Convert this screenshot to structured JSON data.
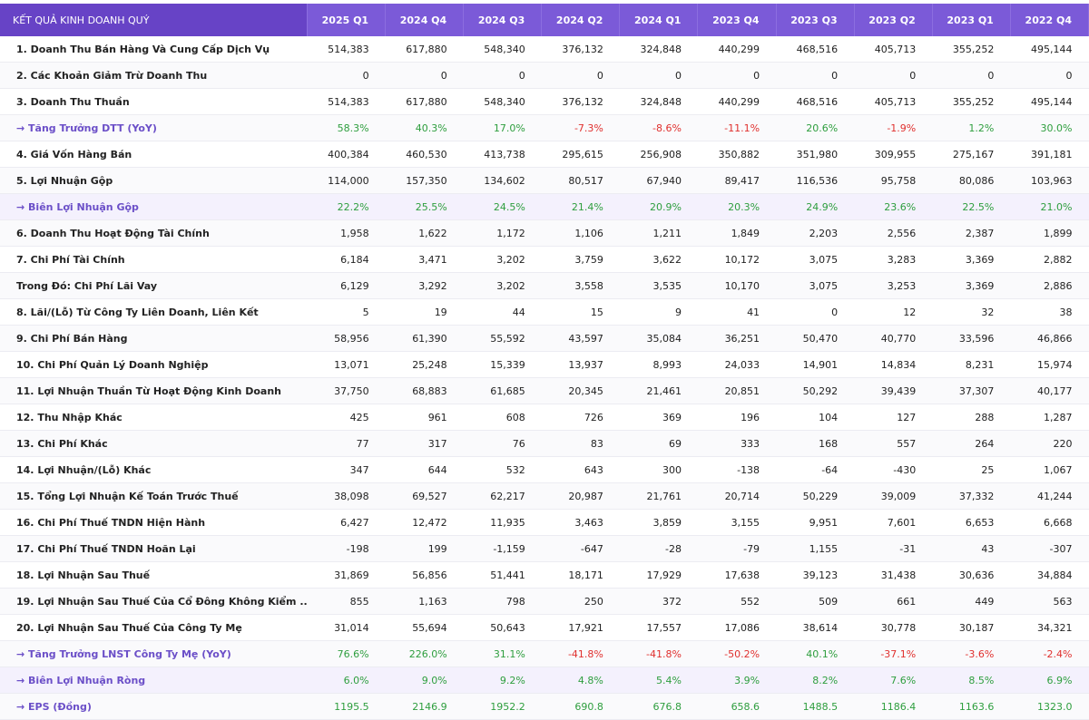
{
  "table": {
    "header": [
      "KẾT QUẢ KINH DOANH QUÝ",
      "2025 Q1",
      "2024 Q4",
      "2024 Q3",
      "2024 Q2",
      "2024 Q1",
      "2023 Q4",
      "2023 Q3",
      "2023 Q2",
      "2023 Q1",
      "2022 Q4"
    ],
    "rows": [
      [
        "1. Doanh Thu Bán Hàng Và Cung Cấp Dịch Vụ",
        "514,383",
        "617,880",
        "548,340",
        "376,132",
        "324,848",
        "440,299",
        "468,516",
        "405,713",
        "355,252",
        "495,144"
      ],
      [
        "2. Các Khoản Giảm Trừ Doanh Thu",
        "0",
        "0",
        "0",
        "0",
        "0",
        "0",
        "0",
        "0",
        "0",
        "0"
      ],
      [
        "3. Doanh Thu Thuần",
        "514,383",
        "617,880",
        "548,340",
        "376,132",
        "324,848",
        "440,299",
        "468,516",
        "405,713",
        "355,252",
        "495,144"
      ],
      [
        "→ Tăng Trưởng DTT (YoY)",
        "58.3%",
        "40.3%",
        "17.0%",
        "-7.3%",
        "-8.6%",
        "-11.1%",
        "20.6%",
        "-1.9%",
        "1.2%",
        "30.0%"
      ],
      [
        "4. Giá Vốn Hàng Bán",
        "400,384",
        "460,530",
        "413,738",
        "295,615",
        "256,908",
        "350,882",
        "351,980",
        "309,955",
        "275,167",
        "391,181"
      ],
      [
        "5. Lợi Nhuận Gộp",
        "114,000",
        "157,350",
        "134,602",
        "80,517",
        "67,940",
        "89,417",
        "116,536",
        "95,758",
        "80,086",
        "103,963"
      ],
      [
        "→ Biên Lợi Nhuận Gộp",
        "22.2%",
        "25.5%",
        "24.5%",
        "21.4%",
        "20.9%",
        "20.3%",
        "24.9%",
        "23.6%",
        "22.5%",
        "21.0%"
      ],
      [
        "6. Doanh Thu Hoạt Động Tài Chính",
        "1,958",
        "1,622",
        "1,172",
        "1,106",
        "1,211",
        "1,849",
        "2,203",
        "2,556",
        "2,387",
        "1,899"
      ],
      [
        "7. Chi Phí Tài Chính",
        "6,184",
        "3,471",
        "3,202",
        "3,759",
        "3,622",
        "10,172",
        "3,075",
        "3,283",
        "3,369",
        "2,882"
      ],
      [
        "Trong Đó: Chi Phí Lãi Vay",
        "6,129",
        "3,292",
        "3,202",
        "3,558",
        "3,535",
        "10,170",
        "3,075",
        "3,253",
        "3,369",
        "2,886"
      ],
      [
        "8. Lãi/(Lỗ) Từ Công Ty Liên Doanh, Liên Kết",
        "5",
        "19",
        "44",
        "15",
        "9",
        "41",
        "0",
        "12",
        "32",
        "38"
      ],
      [
        "9. Chi Phí Bán Hàng",
        "58,956",
        "61,390",
        "55,592",
        "43,597",
        "35,084",
        "36,251",
        "50,470",
        "40,770",
        "33,596",
        "46,866"
      ],
      [
        "10. Chi Phí Quản Lý Doanh Nghiệp",
        "13,071",
        "25,248",
        "15,339",
        "13,937",
        "8,993",
        "24,033",
        "14,901",
        "14,834",
        "8,231",
        "15,974"
      ],
      [
        "11. Lợi Nhuận Thuần Từ Hoạt Động Kinh Doanh",
        "37,750",
        "68,883",
        "61,685",
        "20,345",
        "21,461",
        "20,851",
        "50,292",
        "39,439",
        "37,307",
        "40,177"
      ],
      [
        "12. Thu Nhập Khác",
        "425",
        "961",
        "608",
        "726",
        "369",
        "196",
        "104",
        "127",
        "288",
        "1,287"
      ],
      [
        "13. Chi Phí Khác",
        "77",
        "317",
        "76",
        "83",
        "69",
        "333",
        "168",
        "557",
        "264",
        "220"
      ],
      [
        "14. Lợi Nhuận/(Lỗ) Khác",
        "347",
        "644",
        "532",
        "643",
        "300",
        "-138",
        "-64",
        "-430",
        "25",
        "1,067"
      ],
      [
        "15. Tổng Lợi Nhuận Kế Toán Trước Thuế",
        "38,098",
        "69,527",
        "62,217",
        "20,987",
        "21,761",
        "20,714",
        "50,229",
        "39,009",
        "37,332",
        "41,244"
      ],
      [
        "16. Chi Phí Thuế TNDN Hiện Hành",
        "6,427",
        "12,472",
        "11,935",
        "3,463",
        "3,859",
        "3,155",
        "9,951",
        "7,601",
        "6,653",
        "6,668"
      ],
      [
        "17. Chi Phí Thuế TNDN Hoãn Lại",
        "-198",
        "199",
        "-1,159",
        "-647",
        "-28",
        "-79",
        "1,155",
        "-31",
        "43",
        "-307"
      ],
      [
        "18. Lợi Nhuận Sau Thuế",
        "31,869",
        "56,856",
        "51,441",
        "18,171",
        "17,929",
        "17,638",
        "39,123",
        "31,438",
        "30,636",
        "34,884"
      ],
      [
        "19. Lợi Nhuận Sau Thuế Của Cổ Đông Không Kiểm ...",
        "855",
        "1,163",
        "798",
        "250",
        "372",
        "552",
        "509",
        "661",
        "449",
        "563"
      ],
      [
        "20. Lợi Nhuận Sau Thuế Của Công Ty Mẹ",
        "31,014",
        "55,694",
        "50,643",
        "17,921",
        "17,557",
        "17,086",
        "38,614",
        "30,778",
        "30,187",
        "34,321"
      ],
      [
        "→ Tăng Trưởng LNST Công Ty Mẹ (YoY)",
        "76.6%",
        "226.0%",
        "31.1%",
        "-41.8%",
        "-41.8%",
        "-50.2%",
        "40.1%",
        "-37.1%",
        "-3.6%",
        "-2.4%"
      ],
      [
        "→ Biên Lợi Nhuận Ròng",
        "6.0%",
        "9.0%",
        "9.2%",
        "4.8%",
        "5.4%",
        "3.9%",
        "8.2%",
        "7.6%",
        "8.5%",
        "6.9%"
      ],
      [
        "→ EPS (Đồng)",
        "1195.5",
        "2146.9",
        "1952.2",
        "690.8",
        "676.8",
        "658.6",
        "1488.5",
        "1186.4",
        "1163.6",
        "1323.0"
      ]
    ]
  }
}
